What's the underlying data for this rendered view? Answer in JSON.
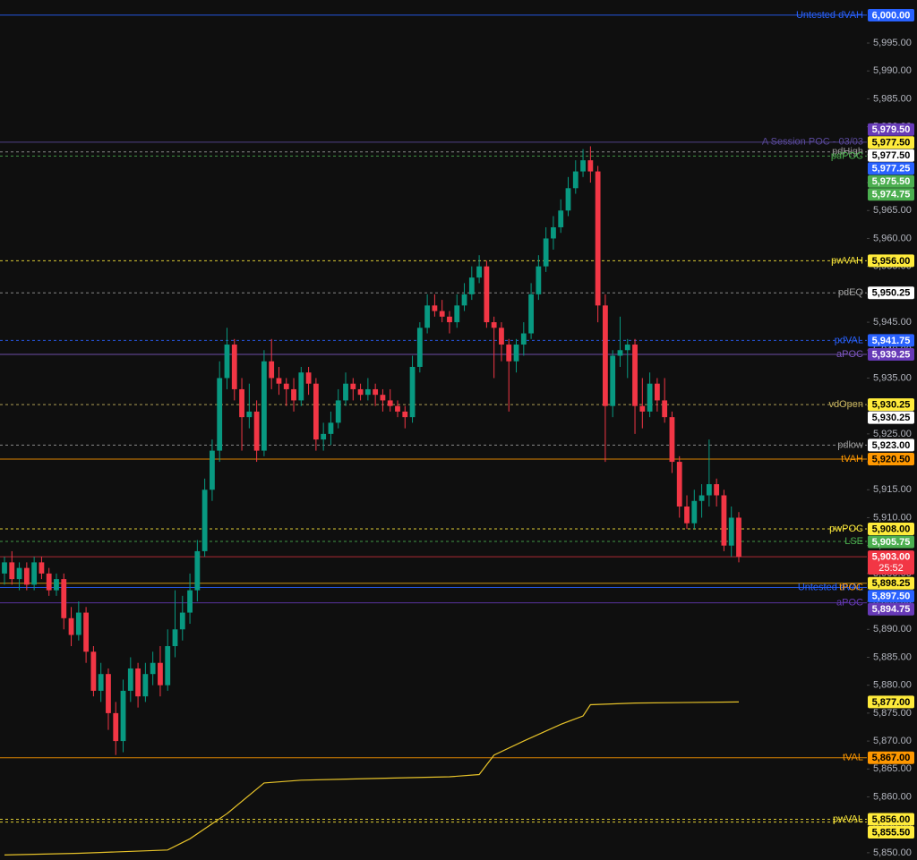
{
  "chart_data": {
    "type": "candlestick",
    "ylim": [
      5848.7,
      6002.7
    ],
    "yticks": [
      {
        "value": 5850,
        "label": "5,850.00"
      },
      {
        "value": 5855,
        "label": "5,855.00"
      },
      {
        "value": 5860,
        "label": "5,860.00"
      },
      {
        "value": 5865,
        "label": "5,865.00"
      },
      {
        "value": 5870,
        "label": "5,870.00"
      },
      {
        "value": 5875,
        "label": "5,875.00"
      },
      {
        "value": 5880,
        "label": "5,880.00"
      },
      {
        "value": 5885,
        "label": "5,885.00"
      },
      {
        "value": 5890,
        "label": "5,890.00"
      },
      {
        "value": 5895,
        "label": "5,895.00"
      },
      {
        "value": 5900,
        "label": "5,900.00"
      },
      {
        "value": 5905,
        "label": "5,905.00"
      },
      {
        "value": 5910,
        "label": "5,910.00"
      },
      {
        "value": 5915,
        "label": "5,915.00"
      },
      {
        "value": 5920,
        "label": "5,920.00"
      },
      {
        "value": 5925,
        "label": "5,925.00"
      },
      {
        "value": 5930,
        "label": "5,930.00"
      },
      {
        "value": 5935,
        "label": "5,935.00"
      },
      {
        "value": 5940,
        "label": "5,940.00"
      },
      {
        "value": 5945,
        "label": "5,945.00"
      },
      {
        "value": 5950,
        "label": "5,950.00"
      },
      {
        "value": 5955,
        "label": "5,955.00"
      },
      {
        "value": 5960,
        "label": "5,960.00"
      },
      {
        "value": 5965,
        "label": "5,965.00"
      },
      {
        "value": 5970,
        "label": "5,970.00"
      },
      {
        "value": 5975,
        "label": "5,975.00"
      },
      {
        "value": 5980,
        "label": "5,980.00"
      },
      {
        "value": 5985,
        "label": "5,985.00"
      },
      {
        "value": 5990,
        "label": "5,990.00"
      },
      {
        "value": 5995,
        "label": "5,995.00"
      }
    ],
    "up_color": "#089981",
    "down_color": "#f23645",
    "open": [
      5900,
      5902,
      5899,
      5901,
      5898,
      5902,
      5900,
      5897,
      5899,
      5892,
      5889,
      5893,
      5886,
      5879,
      5882,
      5875,
      5870,
      5879,
      5883,
      5878,
      5882,
      5884,
      5880,
      5887,
      5890,
      5893,
      5897,
      5904,
      5915,
      5922,
      5935,
      5941,
      5933,
      5928,
      5929,
      5922,
      5938,
      5935,
      5934,
      5933,
      5931,
      5936,
      5934,
      5924,
      5925,
      5927,
      5931,
      5934,
      5933,
      5932,
      5933,
      5932,
      5931,
      5930,
      5929,
      5928,
      5937,
      5944,
      5948,
      5947,
      5946,
      5945,
      5948,
      5950,
      5953,
      5955,
      5945,
      5944,
      5941,
      5938,
      5941,
      5943,
      5950,
      5955,
      5960,
      5962,
      5965,
      5969,
      5972,
      5974,
      5972,
      5948,
      5930,
      5939,
      5940,
      5941,
      5930,
      5929,
      5934,
      5931,
      5928,
      5920,
      5912,
      5909,
      5913,
      5914,
      5916,
      5914,
      5905,
      5910
    ],
    "high": [
      5903,
      5904,
      5902,
      5902,
      5903,
      5903,
      5901,
      5900,
      5900,
      5894,
      5895,
      5894,
      5887,
      5884,
      5883,
      5877,
      5881,
      5885,
      5884,
      5884,
      5886,
      5887,
      5890,
      5897,
      5896,
      5900,
      5906,
      5917,
      5924,
      5938,
      5944,
      5942,
      5935,
      5934,
      5931,
      5940,
      5942,
      5937,
      5935,
      5935,
      5937,
      5937,
      5935,
      5927,
      5929,
      5933,
      5936,
      5935,
      5934,
      5935,
      5934,
      5933,
      5933,
      5931,
      5930,
      5939,
      5945,
      5950,
      5950,
      5949,
      5947,
      5950,
      5952,
      5955,
      5957,
      5956,
      5946,
      5945,
      5942,
      5942,
      5945,
      5952,
      5957,
      5962,
      5964,
      5967,
      5971,
      5974,
      5976,
      5976.5,
      5973,
      5950,
      5940,
      5946,
      5942,
      5942,
      5935,
      5936,
      5935,
      5935,
      5929,
      5921,
      5914,
      5915,
      5916,
      5924,
      5917,
      5915,
      5912,
      5911
    ],
    "low": [
      5898,
      5898,
      5897,
      5897,
      5897,
      5899,
      5896,
      5896,
      5890,
      5887,
      5888,
      5884,
      5878,
      5877,
      5872,
      5867.5,
      5868,
      5877,
      5876,
      5877,
      5880,
      5878,
      5879,
      5885,
      5888,
      5891,
      5895,
      5903,
      5913,
      5920,
      5933,
      5931,
      5922,
      5926,
      5920,
      5921,
      5933,
      5932,
      5930,
      5929,
      5930,
      5932,
      5922,
      5922,
      5923,
      5926,
      5930,
      5931,
      5931,
      5931,
      5930,
      5929,
      5929,
      5928,
      5926,
      5927,
      5936,
      5943,
      5946,
      5945,
      5943,
      5944,
      5947,
      5949,
      5952,
      5944,
      5935,
      5938,
      5929,
      5936,
      5939,
      5942,
      5949,
      5954,
      5958,
      5961,
      5964,
      5968,
      5971,
      5970,
      5945,
      5920,
      5928,
      5937,
      5935,
      5925,
      5926,
      5928,
      5929,
      5927,
      5918,
      5910,
      5908,
      5908,
      5910,
      5912,
      5912,
      5904,
      5903,
      5902
    ],
    "close": [
      5902,
      5899,
      5901,
      5898,
      5902,
      5900,
      5897,
      5899,
      5892,
      5889,
      5893,
      5886,
      5879,
      5882,
      5875,
      5870,
      5879,
      5883,
      5878,
      5882,
      5884,
      5880,
      5887,
      5890,
      5893,
      5897,
      5904,
      5915,
      5922,
      5935,
      5941,
      5933,
      5928,
      5929,
      5922,
      5938,
      5935,
      5934,
      5933,
      5931,
      5936,
      5934,
      5924,
      5925,
      5927,
      5931,
      5934,
      5933,
      5932,
      5933,
      5932,
      5931,
      5930,
      5929,
      5928,
      5937,
      5944,
      5948,
      5947,
      5946,
      5945,
      5948,
      5950,
      5953,
      5955,
      5945,
      5944,
      5941,
      5938,
      5941,
      5943,
      5950,
      5955,
      5960,
      5962,
      5965,
      5969,
      5972,
      5974,
      5972,
      5948,
      5930,
      5939,
      5940,
      5941,
      5930,
      5929,
      5934,
      5931,
      5928,
      5920,
      5912,
      5909,
      5913,
      5914,
      5916,
      5914,
      5905,
      5910,
      5903
    ],
    "vwap": {
      "color": "#e6c229",
      "x": [
        0,
        10,
        22,
        25,
        30,
        35,
        40,
        50,
        60,
        64,
        66,
        70,
        75,
        78,
        79,
        85,
        99
      ],
      "values": [
        5849.6,
        5849.9,
        5850.5,
        5852.5,
        5857,
        5862.5,
        5863,
        5863.3,
        5863.6,
        5864,
        5867.5,
        5870,
        5873,
        5874.5,
        5876.5,
        5876.8,
        5877
      ]
    },
    "levels": [
      {
        "label": "Untested dVAH",
        "value": 6000,
        "value_label": "6,000.00",
        "color": "#2962ff",
        "line": "solid",
        "badge": "#2962ff",
        "badge_text": "#ffffff"
      },
      {
        "value": 5979.5,
        "value_label": "5,979.50",
        "color": "#673ab7",
        "line": "none",
        "badge": "#673ab7",
        "badge_text": "#ffffff"
      },
      {
        "value": 5977.5,
        "value_label": "5,977.50",
        "color": "#ffeb3b",
        "line": "none",
        "badge": "#ffeb3b",
        "badge_text": "#000000"
      },
      {
        "value": 5977.5,
        "value_label": "5,977.50",
        "color": "#ffffff",
        "line": "none",
        "badge": "#ffffff",
        "badge_text": "#000000"
      },
      {
        "label": "A Session POC - 03/03",
        "value": 5977.25,
        "value_label": "5,977.25",
        "color": "#5b4a9e",
        "line": "solid",
        "badge": "#2962ff",
        "badge_text": "#ffffff"
      },
      {
        "label": "pdHigh",
        "value": 5975.5,
        "value_label": "5,975.50",
        "color": "#9e9e9e",
        "line": "dashed",
        "badge": "#4caf50",
        "badge_text": "#ffffff"
      },
      {
        "label": "pdPOC",
        "value": 5974.75,
        "value_label": "5,974.75",
        "color": "#4caf50",
        "line": "dashed",
        "badge": "#4caf50",
        "badge_text": "#ffffff"
      },
      {
        "label": "pwVAH",
        "value": 5956,
        "value_label": "5,956.00",
        "color": "#ffeb3b",
        "line": "dashed",
        "badge": "#ffeb3b",
        "badge_text": "#000000"
      },
      {
        "label": "pdEQ",
        "value": 5950.25,
        "value_label": "5,950.25",
        "color": "#9e9e9e",
        "line": "dashed",
        "badge": "#ffffff",
        "badge_text": "#000000"
      },
      {
        "label": "pdVAL",
        "value": 5941.75,
        "value_label": "5,941.75",
        "color": "#2962ff",
        "line": "dashed",
        "badge": "#2962ff",
        "badge_text": "#ffffff"
      },
      {
        "label": "aPOC",
        "value": 5939.25,
        "value_label": "5,939.25",
        "color": "#7e57c2",
        "line": "solid",
        "badge": "#673ab7",
        "badge_text": "#ffffff"
      },
      {
        "value": 5930.25,
        "value_label": "5,930.25",
        "color": "#ffeb3b",
        "line": "none",
        "badge": "#ffeb3b",
        "badge_text": "#000000"
      },
      {
        "label": "vdOpen",
        "value": 5930.25,
        "value_label": "5,930.25",
        "color": "#c8b560",
        "line": "dashed",
        "badge": "#ffffff",
        "badge_text": "#000000"
      },
      {
        "label": "pdlow",
        "value": 5923,
        "value_label": "5,923.00",
        "color": "#9e9e9e",
        "line": "dashed",
        "badge": "#ffffff",
        "badge_text": "#000000"
      },
      {
        "label": "tVAH",
        "value": 5920.5,
        "value_label": "5,920.50",
        "color": "#ff9800",
        "line": "solid",
        "badge": "#ff9800",
        "badge_text": "#000000"
      },
      {
        "label": "pwPOC",
        "value": 5908,
        "value_label": "5,908.00",
        "color": "#ffeb3b",
        "line": "dashed",
        "badge": "#ffeb3b",
        "badge_text": "#000000"
      },
      {
        "label": "LSE",
        "value": 5905.75,
        "value_label": "5,905.75",
        "color": "#4caf50",
        "line": "dashed",
        "badge": "#4caf50",
        "badge_text": "#ffffff"
      },
      {
        "value": 5898.25,
        "value_label": "5,898.25",
        "color": "#e6a817",
        "line": "solid",
        "badge": "#ffeb3b",
        "badge_text": "#000000"
      },
      {
        "label": "Untested dVAL",
        "value": 5897.5,
        "value_label": "5,897.50",
        "color": "#2962ff",
        "line": "solid",
        "badge": "#2962ff",
        "badge_text": "#ffffff"
      },
      {
        "label": "tPOC",
        "value": 5897.5,
        "color": "#ff9800",
        "line": "none"
      },
      {
        "label": "aPOC",
        "value": 5894.75,
        "value_label": "5,894.75",
        "color": "#673ab7",
        "line": "solid",
        "badge": "#673ab7",
        "badge_text": "#ffffff"
      },
      {
        "value": 5877,
        "value_label": "5,877.00",
        "color": "#ffeb3b",
        "line": "none",
        "badge": "#ffeb3b",
        "badge_text": "#000000"
      },
      {
        "label": "tVAL",
        "value": 5867,
        "value_label": "5,867.00",
        "color": "#ff9800",
        "line": "solid",
        "badge": "#ff9800",
        "badge_text": "#000000"
      },
      {
        "label": "pwVAL",
        "value": 5856,
        "value_label": "5,856.00",
        "color": "#ffeb3b",
        "line": "dashed",
        "badge": "#ffeb3b",
        "badge_text": "#000000"
      },
      {
        "value": 5855.5,
        "value_label": "5,855.50",
        "color": "#ffeb3b",
        "line": "dashed",
        "badge": "#ffeb3b",
        "badge_text": "#000000"
      }
    ],
    "last_price": {
      "value": 5903,
      "value_label": "5,903.00",
      "timer": "25:52",
      "color": "#f23645"
    }
  }
}
